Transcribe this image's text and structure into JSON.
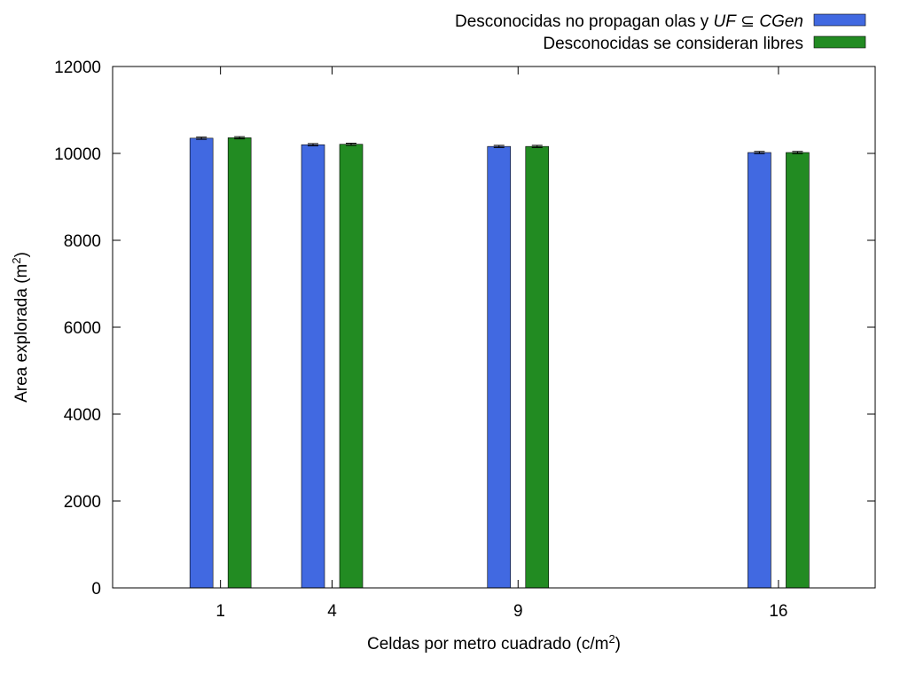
{
  "chart_data": {
    "type": "bar",
    "xlabel": "Celdas por metro cuadrado (c/m",
    "xlabel_sup": "2",
    "xlabel_end": ")",
    "ylabel": "Area explorada (m",
    "ylabel_sup": "2",
    "ylabel_end": ")",
    "ylim": [
      0,
      12000
    ],
    "xlim": [
      -1.9,
      18.6
    ],
    "yticks": [
      0,
      2000,
      4000,
      6000,
      8000,
      10000,
      12000
    ],
    "categories": [
      "1",
      "4",
      "9",
      "16"
    ],
    "category_x": [
      1,
      4,
      9,
      16
    ],
    "legend_position": "top-right",
    "series": [
      {
        "name_parts": [
          "Desconocidas no propagan olas y ",
          "UF",
          " ⊆ ",
          "CGen"
        ],
        "color": "#4169e1",
        "values": [
          10350,
          10200,
          10160,
          10020
        ],
        "errors": [
          25,
          25,
          25,
          25
        ]
      },
      {
        "name": "Desconocidas se consideran libres",
        "color": "#228b22",
        "values": [
          10360,
          10210,
          10160,
          10020
        ],
        "errors": [
          25,
          25,
          25,
          25
        ]
      }
    ]
  }
}
